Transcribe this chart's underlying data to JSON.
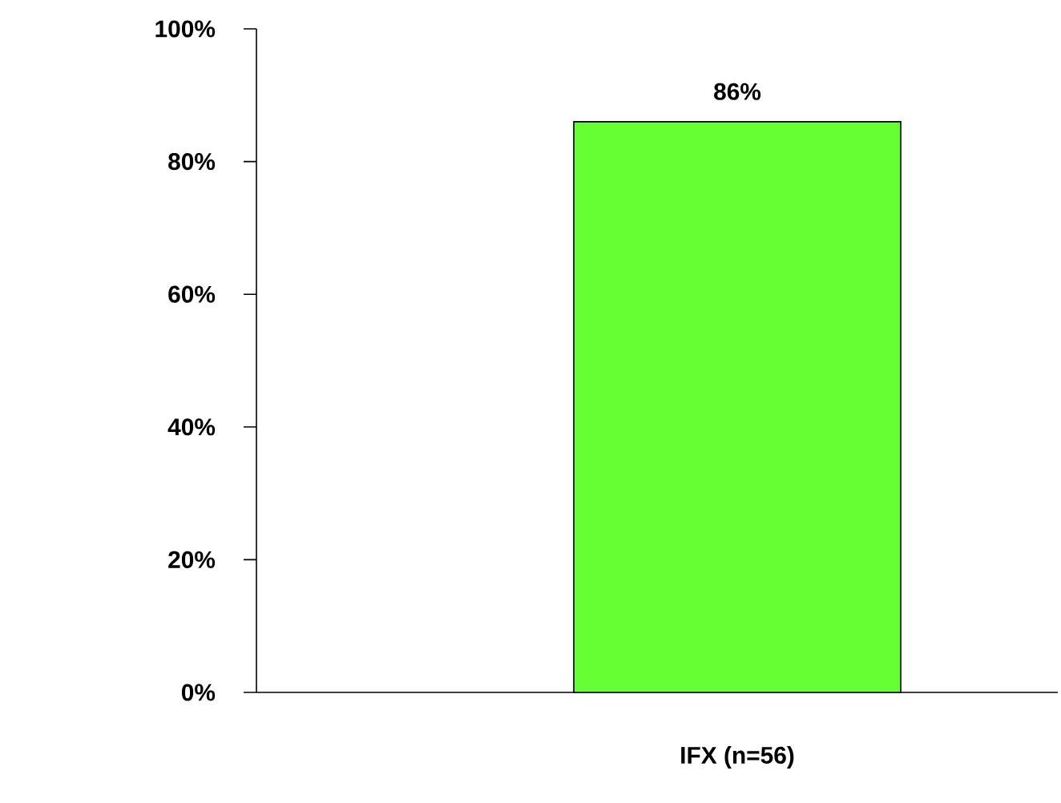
{
  "chart_data": {
    "type": "bar",
    "categories": [
      "IFX (n=56)"
    ],
    "values": [
      86
    ],
    "value_labels": [
      "86%"
    ],
    "color": "#66ff33",
    "ylim": [
      0,
      100
    ],
    "yticks": [
      {
        "value": 0,
        "label": "0%"
      },
      {
        "value": 20,
        "label": "20%"
      },
      {
        "value": 40,
        "label": "40%"
      },
      {
        "value": 60,
        "label": "60%"
      },
      {
        "value": 80,
        "label": "80%"
      },
      {
        "value": 100,
        "label": "100%"
      }
    ]
  }
}
